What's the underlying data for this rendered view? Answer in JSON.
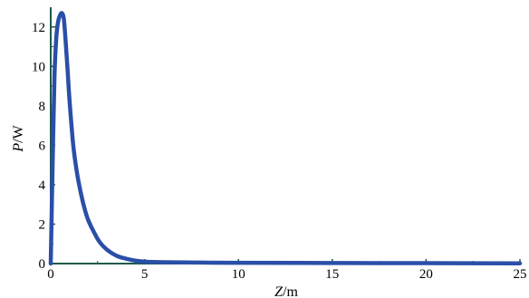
{
  "chart_data": {
    "type": "line",
    "title": "",
    "xlabel": {
      "var": "Z",
      "unit": "/m"
    },
    "ylabel": {
      "var": "P",
      "unit": "/W"
    },
    "xlim": [
      0,
      25
    ],
    "ylim": [
      0,
      13
    ],
    "x_ticks": [
      0,
      5,
      10,
      15,
      20,
      25
    ],
    "y_ticks": [
      0,
      2,
      4,
      6,
      8,
      10,
      12
    ],
    "grid": false,
    "colors": {
      "line": "#2a4fa8",
      "axis": "#1f5a48"
    },
    "series": [
      {
        "x": [
          0,
          0.1,
          0.2,
          0.3,
          0.4,
          0.5,
          0.6,
          0.7,
          0.8,
          0.9,
          1.0,
          1.2,
          1.4,
          1.6,
          1.8,
          2.0,
          2.3,
          2.6,
          3.0,
          3.5,
          4.0,
          4.5,
          5.0,
          6.0,
          8.0,
          10.0,
          15.0,
          20.0,
          25.0
        ],
        "values": [
          0,
          5.0,
          9.5,
          11.5,
          12.3,
          12.6,
          12.7,
          12.4,
          11.2,
          9.8,
          8.3,
          6.0,
          4.6,
          3.6,
          2.8,
          2.2,
          1.6,
          1.1,
          0.7,
          0.4,
          0.25,
          0.15,
          0.1,
          0.07,
          0.05,
          0.04,
          0.03,
          0.02,
          0.01
        ]
      }
    ]
  }
}
